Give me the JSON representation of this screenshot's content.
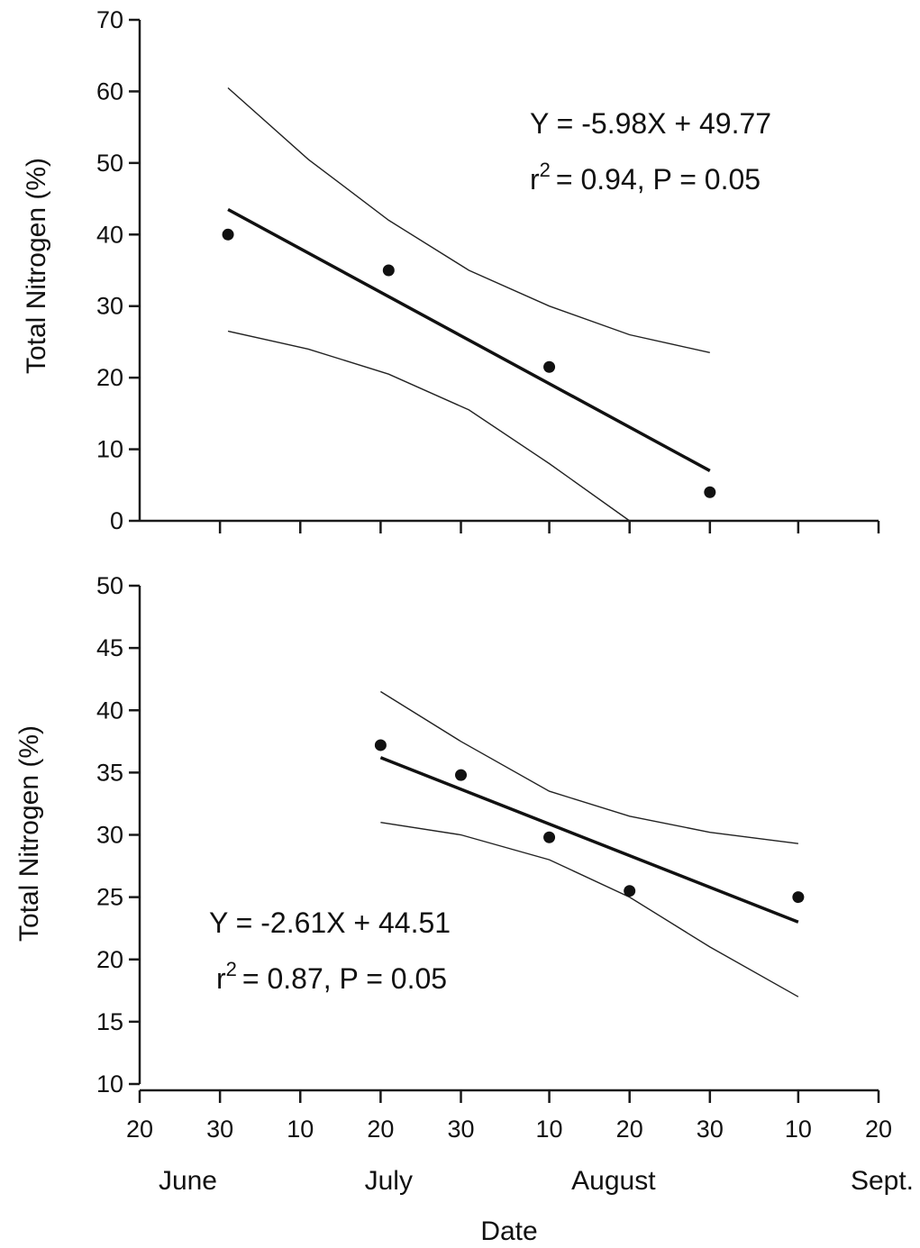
{
  "chart_data": [
    {
      "type": "scatter",
      "xlabel": "",
      "ylabel": "Total Nitrogen (%)",
      "ylim": [
        0,
        70
      ],
      "yticks": [
        0,
        10,
        20,
        30,
        40,
        50,
        60,
        70
      ],
      "xlim": [
        "06-20",
        "09-20"
      ],
      "x_tick_dates": [
        "06-30",
        "07-10",
        "07-20",
        "07-30",
        "08-10",
        "08-20",
        "08-30",
        "09-10",
        "09-20"
      ],
      "series": [
        {
          "x": [
            "07-01",
            "07-21",
            "08-10",
            "08-30"
          ],
          "y": [
            40,
            35,
            21.5,
            4
          ]
        }
      ],
      "fit": {
        "equation": "Y = -5.98X + 49.77",
        "stats": "= 0.94, P = 0.05",
        "stats_prefix": "r",
        "stats_sup": "2",
        "x": [
          "07-01",
          "08-30"
        ],
        "y": [
          43.5,
          7
        ]
      },
      "ci_upper": {
        "x": [
          "07-01",
          "07-11",
          "07-21",
          "07-31",
          "08-10",
          "08-20",
          "08-30"
        ],
        "y": [
          60.5,
          50.5,
          42,
          35,
          30,
          26,
          23.5
        ]
      },
      "ci_lower": {
        "x": [
          "07-01",
          "07-11",
          "07-21",
          "07-31",
          "08-10",
          "08-20"
        ],
        "y": [
          26.5,
          24,
          20.5,
          15.5,
          8,
          0
        ]
      }
    },
    {
      "type": "scatter",
      "xlabel": "Date",
      "ylabel": "Total Nitrogen (%)",
      "ylim": [
        10,
        50
      ],
      "yticks": [
        10,
        15,
        20,
        25,
        30,
        35,
        40,
        45,
        50
      ],
      "xlim": [
        "06-20",
        "09-20"
      ],
      "x_tick_dates": [
        "06-20",
        "06-30",
        "07-10",
        "07-20",
        "07-30",
        "08-10",
        "08-20",
        "08-30",
        "09-10",
        "09-20"
      ],
      "x_tick_labels": [
        "20",
        "30",
        "10",
        "20",
        "30",
        "10",
        "20",
        "30",
        "10",
        "20"
      ],
      "months": [
        {
          "label": "June",
          "date": "06-26"
        },
        {
          "label": "July",
          "date": "07-21"
        },
        {
          "label": "August",
          "date": "08-18"
        },
        {
          "label": "Sept.",
          "date": "09-21"
        }
      ],
      "series": [
        {
          "x": [
            "07-20",
            "07-30",
            "08-10",
            "08-20",
            "09-10"
          ],
          "y": [
            37.2,
            34.8,
            29.8,
            25.5,
            25
          ]
        }
      ],
      "fit": {
        "equation": "Y = -2.61X + 44.51",
        "stats": "= 0.87, P = 0.05",
        "stats_prefix": "r",
        "stats_sup": "2",
        "x": [
          "07-20",
          "09-10"
        ],
        "y": [
          36.2,
          23
        ]
      },
      "ci_upper": {
        "x": [
          "07-20",
          "07-30",
          "08-10",
          "08-20",
          "08-30",
          "09-10"
        ],
        "y": [
          41.5,
          37.5,
          33.5,
          31.5,
          30.2,
          29.3
        ]
      },
      "ci_lower": {
        "x": [
          "07-20",
          "07-30",
          "08-10",
          "08-20",
          "08-30",
          "09-10"
        ],
        "y": [
          31,
          30,
          28,
          25,
          21,
          17
        ]
      }
    }
  ]
}
